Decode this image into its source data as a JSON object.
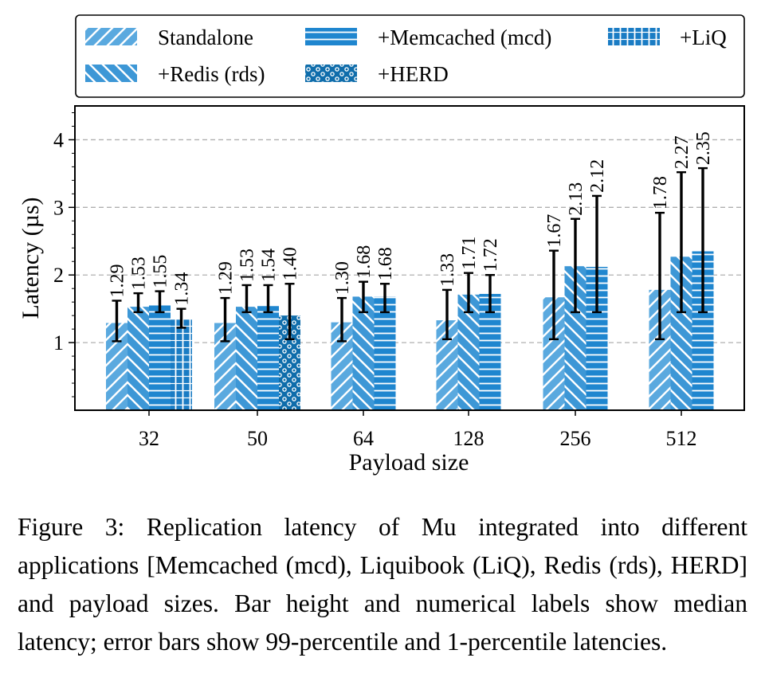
{
  "chart_data": {
    "type": "bar",
    "xlabel": "Payload size",
    "ylabel": "Latency (µs)",
    "ylim": [
      0,
      4.5
    ],
    "yticks": [
      1,
      2,
      3,
      4
    ],
    "grid": "horizontal dashed at y ticks",
    "legend_position": "top, above plot",
    "categories": [
      "32",
      "50",
      "64",
      "128",
      "256",
      "512"
    ],
    "series": [
      {
        "name": "Standalone",
        "pattern": "hatch-forward",
        "color": "#5aa9df",
        "values": [
          1.29,
          1.29,
          1.3,
          1.33,
          1.67,
          1.78
        ],
        "err_low": [
          1.02,
          1.02,
          1.02,
          1.05,
          1.05,
          1.05
        ],
        "err_high": [
          1.62,
          1.66,
          1.66,
          1.78,
          2.36,
          2.92
        ]
      },
      {
        "name": "+Redis (rds)",
        "pattern": "hatch-chevron",
        "color": "#3d97d6",
        "values": [
          1.53,
          1.53,
          1.68,
          1.71,
          2.13,
          2.27
        ],
        "err_low": [
          1.45,
          1.45,
          1.45,
          1.45,
          1.45,
          1.45
        ],
        "err_high": [
          1.73,
          1.85,
          1.9,
          2.03,
          2.83,
          3.52
        ]
      },
      {
        "name": "+Memcached (mcd)",
        "pattern": "horizontal-lines",
        "color": "#1f86cf",
        "values": [
          1.55,
          1.54,
          1.68,
          1.72,
          2.12,
          2.35
        ],
        "err_low": [
          1.45,
          1.45,
          1.45,
          1.45,
          1.45,
          1.45
        ],
        "err_high": [
          1.76,
          1.85,
          1.87,
          2.0,
          3.17,
          3.58
        ]
      },
      {
        "name": "+LiQ",
        "pattern": "grid-dashes",
        "color": "#1a7cc4",
        "values": [
          1.34,
          null,
          null,
          null,
          null,
          null
        ],
        "err_low": [
          1.22,
          null,
          null,
          null,
          null,
          null
        ],
        "err_high": [
          1.5,
          null,
          null,
          null,
          null,
          null
        ]
      },
      {
        "name": "+HERD",
        "pattern": "dots",
        "color": "#0f6dab",
        "values": [
          null,
          1.4,
          null,
          null,
          null,
          null
        ],
        "err_low": [
          null,
          1.05,
          null,
          null,
          null,
          null
        ],
        "err_high": [
          null,
          1.87,
          null,
          null,
          null,
          null
        ]
      }
    ]
  },
  "caption": {
    "text": "Figure 3: Replication latency of Mu integrated into different applications [Memcached (mcd), Liquibook (LiQ), Redis (rds), HERD] and payload sizes. Bar height and numerical labels show median latency; error bars show 99-percentile and 1-percentile latencies."
  }
}
